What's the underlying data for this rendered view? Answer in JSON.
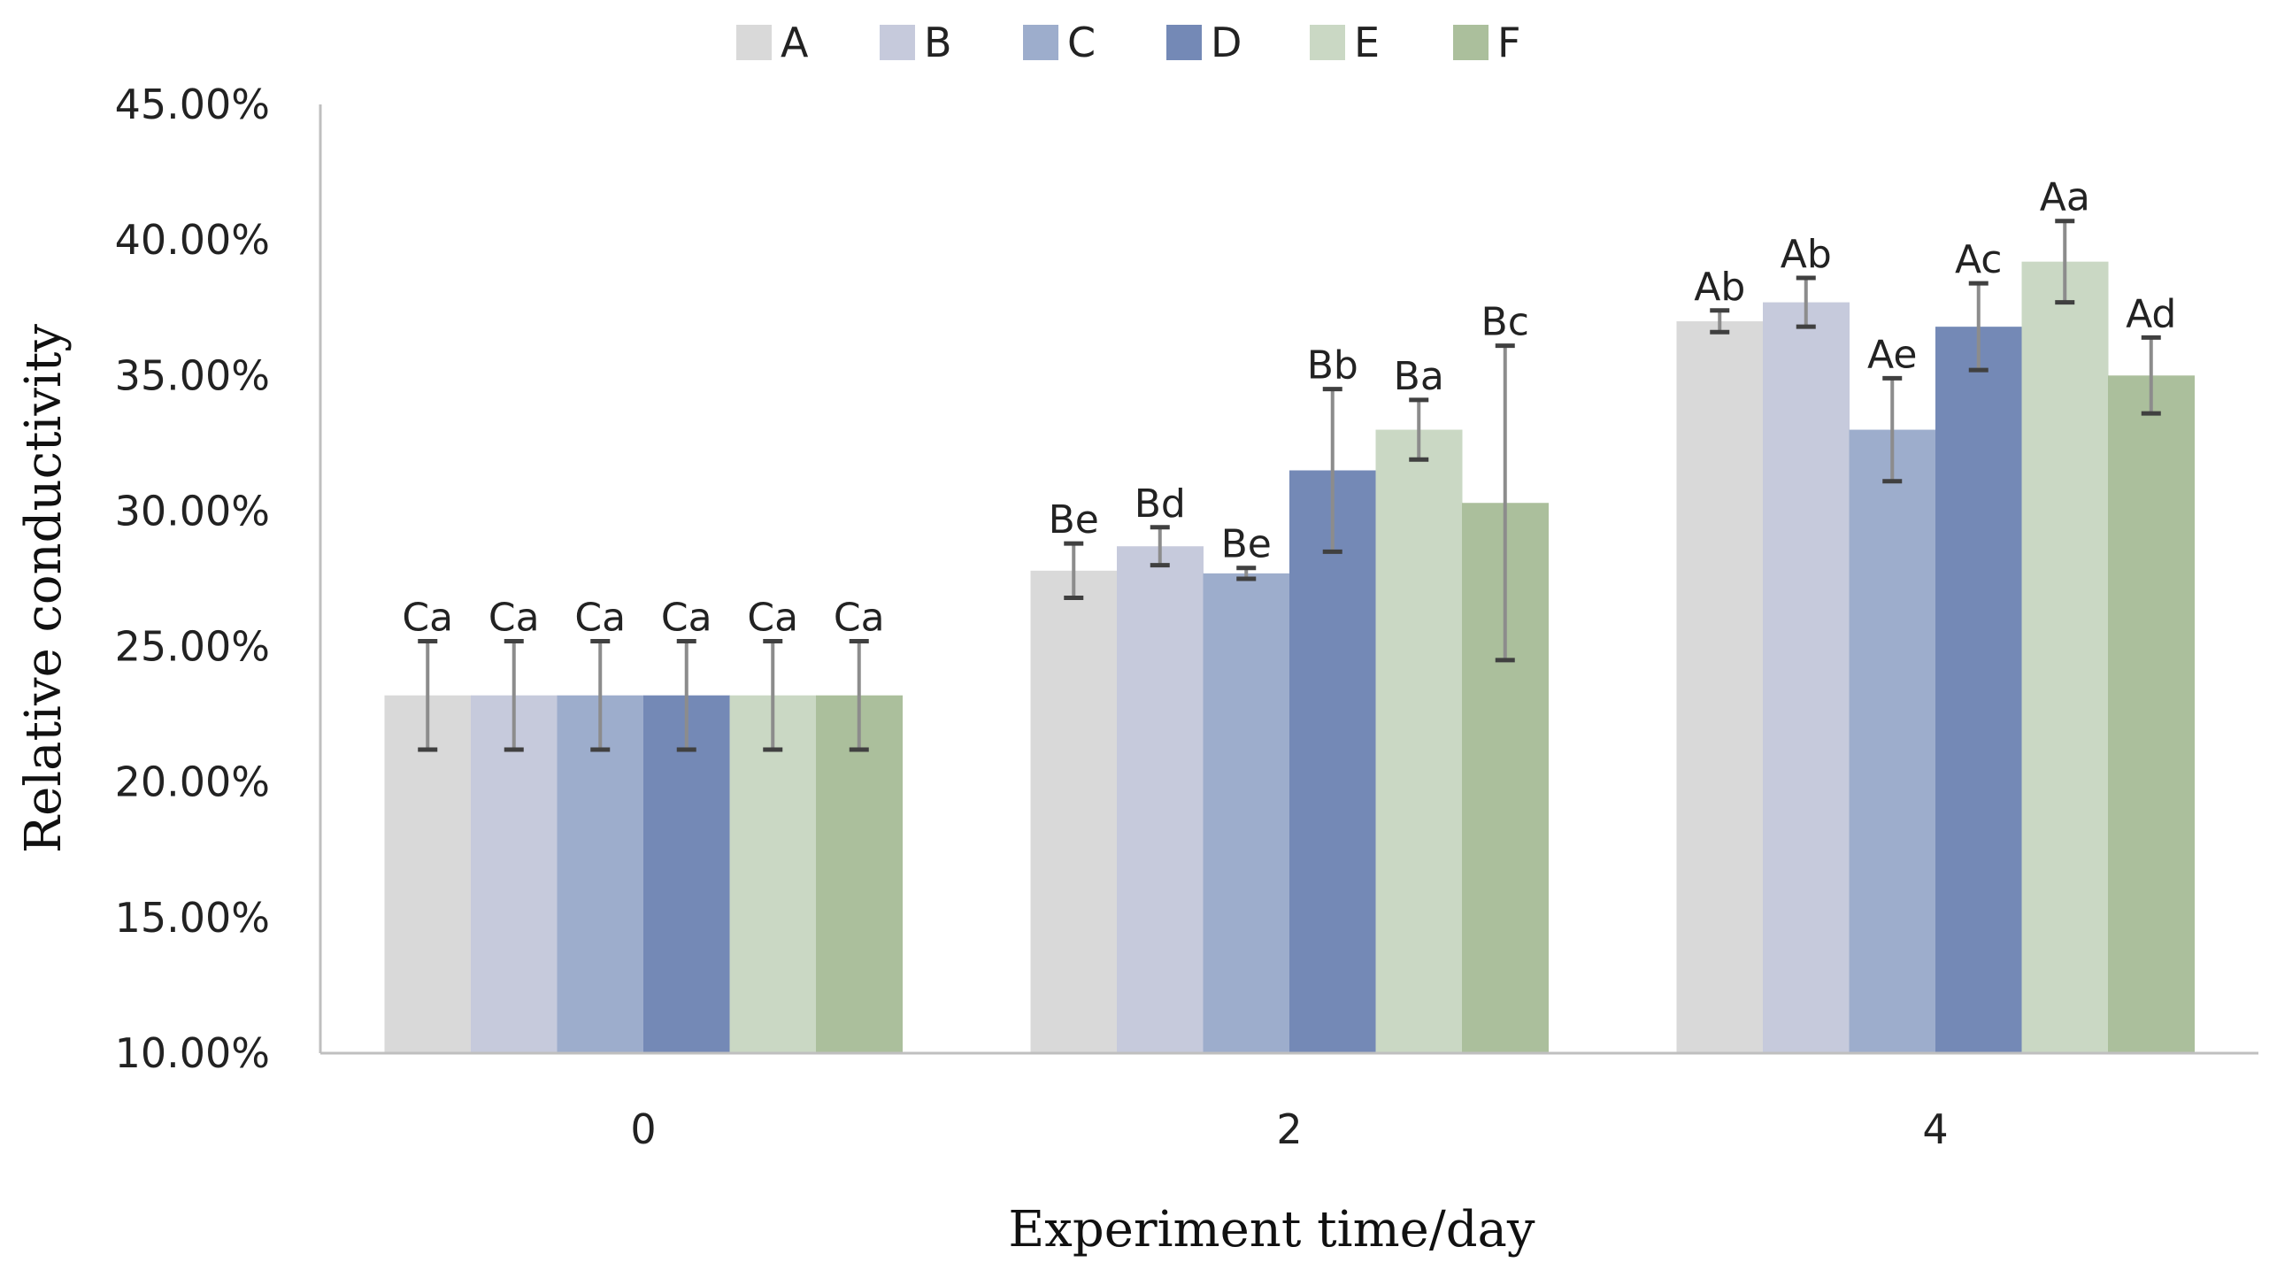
{
  "chart_data": {
    "type": "bar",
    "xlabel": "Experiment time/day",
    "ylabel": "Relative conductivity",
    "ylim": [
      0.1,
      0.45
    ],
    "ytick_step": 0.05,
    "ytick_labels": [
      "10.00%",
      "15.00%",
      "20.00%",
      "25.00%",
      "30.00%",
      "35.00%",
      "40.00%",
      "45.00%"
    ],
    "categories": [
      "0",
      "2",
      "4"
    ],
    "grid": false,
    "legend_position": "top",
    "series": [
      {
        "name": "A",
        "color": "#d9d9d9",
        "values": [
          0.232,
          0.278,
          0.37
        ],
        "errors": [
          0.02,
          0.01,
          0.004
        ],
        "labels": [
          "Ca",
          "Be",
          "Ab"
        ]
      },
      {
        "name": "B",
        "color": "#c6cadc",
        "values": [
          0.232,
          0.287,
          0.377
        ],
        "errors": [
          0.02,
          0.007,
          0.009
        ],
        "labels": [
          "Ca",
          "Bd",
          "Ab"
        ]
      },
      {
        "name": "C",
        "color": "#9dadcc",
        "values": [
          0.232,
          0.277,
          0.33
        ],
        "errors": [
          0.02,
          0.002,
          0.019
        ],
        "labels": [
          "Ca",
          "Be",
          "Ae"
        ]
      },
      {
        "name": "D",
        "color": "#7489b6",
        "values": [
          0.232,
          0.315,
          0.368
        ],
        "errors": [
          0.02,
          0.03,
          0.016
        ],
        "labels": [
          "Ca",
          "Bb",
          "Ac"
        ]
      },
      {
        "name": "E",
        "color": "#cad8c4",
        "values": [
          0.232,
          0.33,
          0.392
        ],
        "errors": [
          0.02,
          0.011,
          0.015
        ],
        "labels": [
          "Ca",
          "Ba",
          "Aa"
        ]
      },
      {
        "name": "F",
        "color": "#abbf9c",
        "values": [
          0.232,
          0.303,
          0.35
        ],
        "errors": [
          0.02,
          0.058,
          0.014
        ],
        "labels": [
          "Ca",
          "Bc",
          "Ad"
        ]
      }
    ]
  }
}
